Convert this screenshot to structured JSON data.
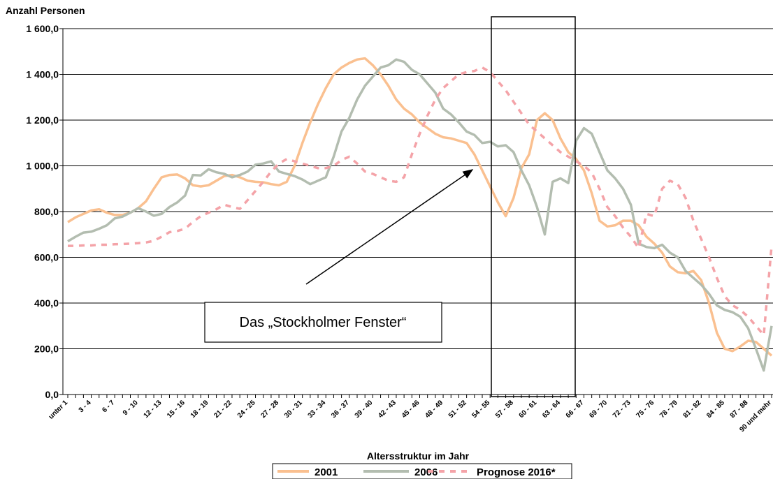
{
  "chart_data": {
    "type": "line",
    "title": "Anzahl Personen",
    "x_label": "Altersstruktur im Jahr",
    "annotations": [
      "Das „Stockholmer Fenster“"
    ],
    "categories": [
      "unter 1",
      null,
      null,
      "3 - 4",
      null,
      null,
      "6 - 7",
      null,
      null,
      "9 - 10",
      null,
      null,
      "12 - 13",
      null,
      null,
      "15 - 16",
      null,
      null,
      "18 - 19",
      null,
      null,
      "21 - 22",
      null,
      null,
      "24 - 25",
      null,
      null,
      "27 - 28",
      null,
      null,
      "30 - 31",
      null,
      null,
      "33 - 34",
      null,
      null,
      "36 - 37",
      null,
      null,
      "39 - 40",
      null,
      null,
      "42 - 43",
      null,
      null,
      "45 - 46",
      null,
      null,
      "48 - 49",
      null,
      null,
      "51 - 52",
      null,
      null,
      "54 - 55",
      null,
      null,
      "57 - 58",
      null,
      null,
      "60 - 61",
      null,
      null,
      "63 - 64",
      null,
      null,
      "66 - 67",
      null,
      null,
      "69 - 70",
      null,
      null,
      "72 - 73",
      null,
      null,
      "75 - 76",
      null,
      null,
      "78 - 79",
      null,
      null,
      "81 - 82",
      null,
      null,
      "84 - 85",
      null,
      null,
      "87 - 88",
      null,
      null,
      "90 und mehr"
    ],
    "series": [
      {
        "name": "2001",
        "color": "#fac090",
        "dashed": false,
        "values": [
          754,
          775,
          790,
          805,
          810,
          795,
          785,
          785,
          795,
          815,
          845,
          900,
          950,
          960,
          962,
          945,
          915,
          910,
          915,
          935,
          955,
          960,
          950,
          935,
          930,
          928,
          920,
          915,
          930,
          1000,
          1100,
          1190,
          1270,
          1340,
          1400,
          1430,
          1450,
          1465,
          1470,
          1440,
          1400,
          1350,
          1290,
          1250,
          1225,
          1190,
          1165,
          1140,
          1125,
          1120,
          1110,
          1100,
          1050,
          980,
          910,
          840,
          780,
          860,
          990,
          1050,
          1200,
          1230,
          1200,
          1120,
          1060,
          1030,
          980,
          880,
          760,
          735,
          740,
          760,
          760,
          740,
          690,
          660,
          620,
          560,
          535,
          530,
          540,
          500,
          400,
          270,
          200,
          190,
          210,
          235,
          230,
          200,
          170
        ]
      },
      {
        "name": "2006",
        "color": "#b3bdb0",
        "dashed": false,
        "values": [
          670,
          690,
          708,
          712,
          725,
          740,
          770,
          778,
          795,
          815,
          800,
          782,
          790,
          820,
          840,
          870,
          960,
          958,
          985,
          972,
          965,
          950,
          960,
          975,
          1005,
          1010,
          1020,
          975,
          965,
          955,
          940,
          920,
          935,
          950,
          1040,
          1150,
          1210,
          1290,
          1350,
          1390,
          1430,
          1440,
          1465,
          1455,
          1420,
          1400,
          1360,
          1320,
          1250,
          1225,
          1190,
          1150,
          1135,
          1100,
          1105,
          1085,
          1090,
          1060,
          980,
          915,
          820,
          700,
          930,
          945,
          925,
          1110,
          1165,
          1140,
          1060,
          980,
          945,
          900,
          830,
          660,
          645,
          640,
          655,
          620,
          600,
          540,
          510,
          480,
          440,
          390,
          370,
          360,
          340,
          290,
          200,
          105,
          300
        ]
      },
      {
        "name": "Prognose 2016*",
        "color": "#f4a3a8",
        "dashed": true,
        "values": [
          650,
          650,
          652,
          652,
          655,
          655,
          657,
          658,
          660,
          662,
          665,
          672,
          690,
          710,
          715,
          725,
          755,
          780,
          795,
          810,
          830,
          820,
          812,
          850,
          890,
          930,
          975,
          1010,
          1030,
          1020,
          1010,
          1000,
          990,
          990,
          1000,
          1025,
          1040,
          1010,
          975,
          965,
          950,
          935,
          930,
          950,
          1050,
          1140,
          1220,
          1290,
          1340,
          1370,
          1400,
          1410,
          1415,
          1430,
          1410,
          1370,
          1330,
          1280,
          1230,
          1180,
          1150,
          1120,
          1090,
          1060,
          1040,
          1020,
          1000,
          970,
          900,
          820,
          780,
          730,
          690,
          640,
          790,
          780,
          900,
          935,
          920,
          860,
          760,
          680,
          600,
          510,
          430,
          390,
          370,
          340,
          300,
          260,
          650
        ]
      }
    ],
    "ylim": [
      0,
      1600
    ],
    "yticks": [
      {
        "value": 0,
        "label": "0,0"
      },
      {
        "value": 200,
        "label": "200,0"
      },
      {
        "value": 400,
        "label": "400,0"
      },
      {
        "value": 600,
        "label": "600,0"
      },
      {
        "value": 800,
        "label": "800,0"
      },
      {
        "value": 1000,
        "label": "1 000,0"
      },
      {
        "value": 1200,
        "label": "1 200,0"
      },
      {
        "value": 1400,
        "label": "1 400,0"
      },
      {
        "value": 1600,
        "label": "1 600,0"
      }
    ],
    "grid": true
  }
}
